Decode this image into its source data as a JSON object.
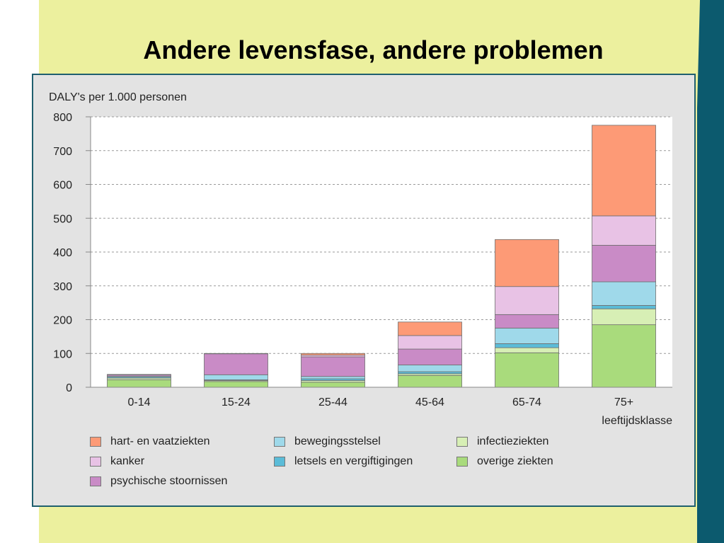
{
  "slide": {
    "title": "Andere levensfase, andere problemen"
  },
  "chart_data": {
    "type": "bar",
    "stacked": true,
    "title": "",
    "ylabel": "DALY's per 1.000 personen",
    "xlabel": "leeftijdsklasse",
    "ylim": [
      0,
      800
    ],
    "yticks": [
      0,
      100,
      200,
      300,
      400,
      500,
      600,
      700,
      800
    ],
    "grid": true,
    "legend_position": "bottom",
    "categories": [
      "0-14",
      "15-24",
      "25-44",
      "45-64",
      "65-74",
      "75+"
    ],
    "series": [
      {
        "name": "overige ziekten",
        "color": "#a9db7c",
        "values": [
          22,
          17,
          15,
          35,
          102,
          185
        ]
      },
      {
        "name": "infectieziekten",
        "color": "#d7efb5",
        "values": [
          5,
          3,
          5,
          5,
          15,
          47
        ]
      },
      {
        "name": "letsels en vergiftigingen",
        "color": "#5bbcd8",
        "values": [
          3,
          2,
          5,
          6,
          12,
          10
        ]
      },
      {
        "name": "bewegingsstelsel",
        "color": "#9fd9ea",
        "values": [
          3,
          15,
          7,
          20,
          46,
          70
        ]
      },
      {
        "name": "psychische stoornissen",
        "color": "#c98bc6",
        "values": [
          4,
          62,
          58,
          47,
          40,
          108
        ]
      },
      {
        "name": "kanker",
        "color": "#e8c2e5",
        "values": [
          1,
          1,
          5,
          40,
          83,
          87
        ]
      },
      {
        "name": "hart- en vaatziekten",
        "color": "#fd9a76",
        "values": [
          0,
          0,
          5,
          40,
          139,
          268
        ]
      }
    ]
  },
  "legend": {
    "items": [
      {
        "label": "hart- en vaatziekten",
        "color": "#fd9a76"
      },
      {
        "label": "kanker",
        "color": "#e8c2e5"
      },
      {
        "label": "psychische stoornissen",
        "color": "#c98bc6"
      },
      {
        "label": "bewegingsstelsel",
        "color": "#9fd9ea"
      },
      {
        "label": "letsels en vergiftigingen",
        "color": "#5bbcd8"
      },
      {
        "label": "infectieziekten",
        "color": "#d7efb5"
      },
      {
        "label": "overige ziekten",
        "color": "#a9db7c"
      }
    ]
  }
}
